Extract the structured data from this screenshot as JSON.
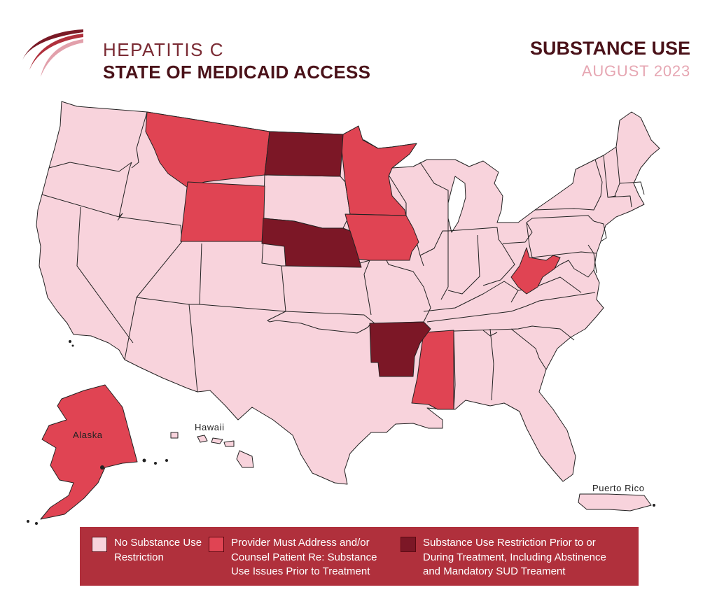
{
  "header": {
    "title_line1": "HEPATITIS C",
    "title_line2": "STATE OF MEDICAID ACCESS",
    "topic": "SUBSTANCE USE",
    "date": "AUGUST 2023"
  },
  "colors": {
    "none": "#f8d3dc",
    "provider": "#e04453",
    "restriction": "#7c1726",
    "border": "#222222",
    "legend_bg": "#b0303c"
  },
  "map_labels": {
    "alaska": "Alaska",
    "hawaii": "Hawaii",
    "puerto_rico": "Puerto Rico"
  },
  "legend": [
    {
      "category": "none",
      "text": "No Substance Use Restriction"
    },
    {
      "category": "provider",
      "text": "Provider Must Address and/or Counsel Patient Re: Substance Use Issues Prior to Treatment"
    },
    {
      "category": "restriction",
      "text": "Substance Use Restriction Prior to or During Treatment, Including Abstinence and Mandatory SUD Treament"
    }
  ],
  "states": {
    "provider": [
      "Montana",
      "Wyoming",
      "Minnesota",
      "Iowa",
      "West Virginia",
      "Mississippi",
      "Alaska"
    ],
    "restriction": [
      "North Dakota",
      "Nebraska",
      "Arkansas"
    ]
  }
}
